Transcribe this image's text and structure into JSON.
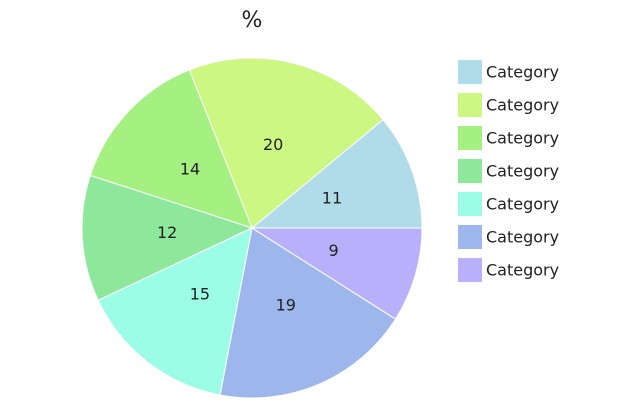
{
  "chart_data": {
    "type": "pie",
    "title": "%",
    "categories": [
      "Category",
      "Category",
      "Category",
      "Category",
      "Category",
      "Category",
      "Category"
    ],
    "values": [
      11,
      20,
      14,
      12,
      15,
      19,
      9
    ],
    "colors": [
      "#b0dcea",
      "#cbf782",
      "#a4f080",
      "#8ee89c",
      "#9cfde6",
      "#9db6ec",
      "#b8b0fb"
    ],
    "legend": "right"
  }
}
